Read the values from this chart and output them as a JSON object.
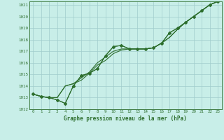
{
  "title": "Graphe pression niveau de la mer (hPa)",
  "bg_color": "#c8eee8",
  "plot_bg_color": "#c8eee8",
  "grid_color": "#a0cccc",
  "line_color": "#2d6e2d",
  "marker_color": "#2d6e2d",
  "xlim": [
    -0.5,
    23.5
  ],
  "ylim": [
    1012,
    1021.3
  ],
  "xticks": [
    0,
    1,
    2,
    3,
    4,
    5,
    6,
    7,
    8,
    9,
    10,
    11,
    12,
    13,
    14,
    15,
    16,
    17,
    18,
    19,
    20,
    21,
    22,
    23
  ],
  "yticks": [
    1012,
    1013,
    1014,
    1015,
    1016,
    1017,
    1018,
    1019,
    1020,
    1021
  ],
  "series1_x": [
    0,
    1,
    2,
    3,
    4,
    5,
    6,
    7,
    8,
    9,
    10,
    11,
    12,
    13,
    14,
    15,
    16,
    17,
    18,
    19,
    20,
    21,
    22,
    23
  ],
  "series1_y": [
    1013.3,
    1013.1,
    1013.0,
    1012.8,
    1012.5,
    1014.0,
    1014.9,
    1015.1,
    1015.5,
    1016.6,
    1017.4,
    1017.5,
    1017.2,
    1017.2,
    1017.2,
    1017.3,
    1017.7,
    1018.6,
    1019.0,
    1019.5,
    1020.0,
    1020.5,
    1021.0,
    1021.3
  ],
  "series2_x": [
    0,
    1,
    2,
    3,
    4,
    5,
    6,
    7,
    8,
    9,
    10,
    11,
    12,
    13,
    14,
    15,
    16,
    17,
    18,
    19,
    20,
    21,
    22,
    23
  ],
  "series2_y": [
    1013.3,
    1013.1,
    1013.0,
    1013.0,
    1014.0,
    1014.2,
    1014.7,
    1015.2,
    1016.0,
    1016.5,
    1017.0,
    1017.2,
    1017.2,
    1017.2,
    1017.2,
    1017.3,
    1017.7,
    1018.2,
    1018.9,
    1019.5,
    1020.0,
    1020.5,
    1021.0,
    1021.3
  ],
  "series3_x": [
    0,
    1,
    2,
    3,
    4,
    5,
    6,
    7,
    8,
    9,
    10,
    11,
    12,
    13,
    14,
    15,
    16,
    17,
    18,
    19,
    20,
    21,
    22,
    23
  ],
  "series3_y": [
    1013.3,
    1013.1,
    1013.0,
    1013.0,
    1014.0,
    1014.2,
    1014.5,
    1015.1,
    1015.8,
    1016.2,
    1016.8,
    1017.1,
    1017.2,
    1017.2,
    1017.2,
    1017.3,
    1017.7,
    1018.2,
    1018.9,
    1019.5,
    1020.0,
    1020.5,
    1021.0,
    1021.3
  ],
  "markers_x": [
    0,
    1,
    2,
    3,
    4,
    5,
    6,
    7,
    8,
    9,
    10,
    11,
    12,
    13,
    14,
    15,
    16,
    17,
    18,
    19,
    20,
    21,
    22,
    23
  ],
  "markers_y": [
    1013.3,
    1013.1,
    1013.0,
    1012.8,
    1012.5,
    1014.0,
    1014.9,
    1015.1,
    1015.5,
    1016.6,
    1017.4,
    1017.5,
    1017.2,
    1017.2,
    1017.2,
    1017.3,
    1017.7,
    1018.6,
    1019.0,
    1019.5,
    1020.0,
    1020.5,
    1021.0,
    1021.3
  ]
}
